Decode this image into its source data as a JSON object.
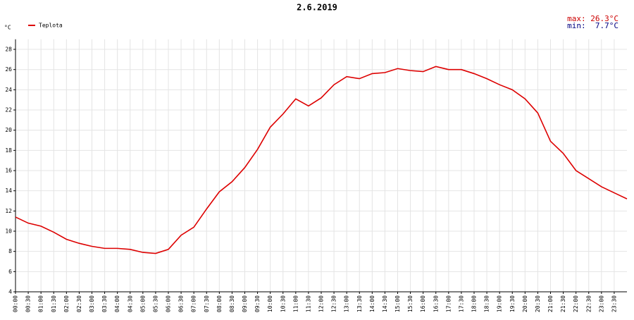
{
  "chart_data": {
    "type": "line",
    "title": "2.6.2019",
    "y_unit": "°C",
    "annotations": [
      {
        "text": "max: 26.3°C",
        "color": "#cc0000"
      },
      {
        "text": "min:  7.7°C",
        "color": "#000080"
      }
    ],
    "categories": [
      "00:00",
      "00:30",
      "01:00",
      "01:30",
      "02:00",
      "02:30",
      "03:00",
      "03:30",
      "04:00",
      "04:30",
      "05:00",
      "05:30",
      "06:00",
      "06:30",
      "07:00",
      "07:30",
      "08:00",
      "08:30",
      "09:00",
      "09:30",
      "10:00",
      "10:30",
      "11:00",
      "11:30",
      "12:00",
      "12:30",
      "13:00",
      "13:30",
      "14:00",
      "14:30",
      "15:00",
      "15:30",
      "16:00",
      "16:30",
      "17:00",
      "17:30",
      "18:00",
      "18:30",
      "19:00",
      "19:30",
      "20:00",
      "20:30",
      "21:00",
      "21:30",
      "22:00",
      "22:30",
      "23:00",
      "23:30",
      null
    ],
    "series": [
      {
        "name": "Teplota",
        "color": "#dd0000",
        "values": [
          11.4,
          10.8,
          10.5,
          9.9,
          9.2,
          8.8,
          8.5,
          8.3,
          8.3,
          8.2,
          7.9,
          7.8,
          8.2,
          9.6,
          10.4,
          12.2,
          13.9,
          14.9,
          16.3,
          18.1,
          20.3,
          21.6,
          23.1,
          22.4,
          23.2,
          24.5,
          25.3,
          25.1,
          25.6,
          25.7,
          26.1,
          25.9,
          25.8,
          26.3,
          26.0,
          26.0,
          25.6,
          25.1,
          24.5,
          24.0,
          23.1,
          21.7,
          18.9,
          17.7,
          16.0,
          15.2,
          14.4,
          13.8,
          13.2
        ]
      }
    ],
    "ylim": [
      4,
      29
    ],
    "yticks": [
      4,
      6,
      8,
      10,
      12,
      14,
      16,
      18,
      20,
      22,
      24,
      26,
      28
    ],
    "grid": true,
    "legend": "top-left"
  }
}
